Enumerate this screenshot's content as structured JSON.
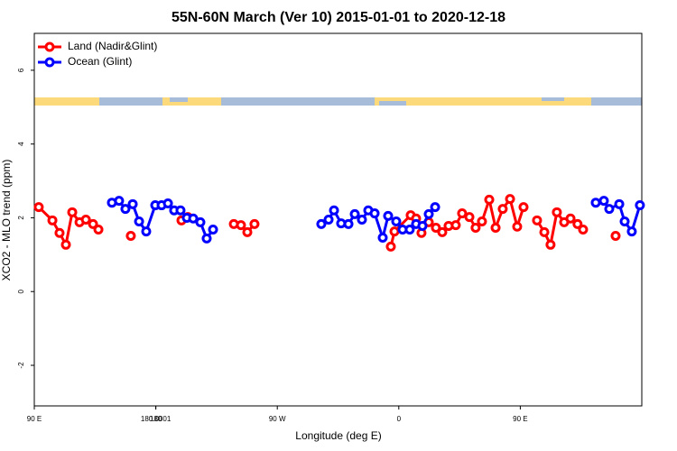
{
  "chart_data": {
    "type": "line",
    "title": "55N-60N March (Ver 10)   2015-01-01 to 2020-12-18",
    "xlabel": "Longitude (deg E)",
    "ylabel": "XCO2 - MLO trend (ppm)",
    "xlim": [
      90,
      540
    ],
    "ylim": [
      -3.1,
      7.0
    ],
    "xticks": [
      {
        "value": 90,
        "label": "90 E"
      },
      180,
      {
        "value": 270,
        "label": "90 W"
      },
      {
        "value": 360,
        "label": "0"
      },
      {
        "value": 450,
        "label": "90 E"
      },
      180.0001
    ],
    "yticks": [
      -2,
      0,
      2,
      4,
      6
    ],
    "legend": "top-left",
    "series": [
      {
        "name": "Land (Nadir&Glint)",
        "color": "#ff0000",
        "x": [
          93.3,
          103.4,
          108.7,
          113.4,
          118.1,
          123.5,
          128.2,
          133.5,
          137.5,
          150,
          161.5,
          180,
          199,
          203.7,
          220,
          237.8,
          243.1,
          247.8,
          253.1,
          300,
          354.1,
          356.8,
          368.8,
          372.8,
          376.8,
          382.2,
          387.5,
          392.2,
          396.9,
          402.2,
          406.9,
          412.3,
          416.9,
          421.6,
          427,
          431.7,
          437,
          442.4,
          447.7,
          452.4,
          457,
          462.4,
          467.8,
          472.4,
          477.1,
          482.5,
          487.2,
          492.4,
          496.5,
          510,
          520.6
        ],
        "values": [
          2.29,
          1.93,
          1.59,
          1.27,
          2.15,
          1.88,
          1.95,
          1.83,
          1.68,
          null,
          1.51,
          null,
          1.93,
          2.02,
          null,
          1.83,
          1.8,
          1.61,
          1.83,
          null,
          1.22,
          1.63,
          2.07,
          1.98,
          1.59,
          1.88,
          1.73,
          1.61,
          1.78,
          1.8,
          2.12,
          2.02,
          1.73,
          1.9,
          2.49,
          1.73,
          2.24,
          2.51,
          1.76,
          2.29,
          null,
          1.93,
          1.61,
          1.27,
          2.15,
          1.88,
          1.98,
          1.83,
          1.68,
          null,
          1.51
        ]
      },
      {
        "name": "Ocean (Glint)",
        "color": "#0000ff",
        "x": [
          147.5,
          152.8,
          157.5,
          162.9,
          167.6,
          172.9,
          179.6,
          184.3,
          189,
          193.6,
          198.3,
          203,
          207.7,
          213,
          217.7,
          222.4,
          260,
          302.6,
          308,
          312,
          317.3,
          322.7,
          327.4,
          332.7,
          337.4,
          342.1,
          348.1,
          352.1,
          358.1,
          362.8,
          368.1,
          372.8,
          377.5,
          382.2,
          386.9,
          450,
          505.9,
          511.9,
          515.9,
          523.3,
          527.3,
          532.6,
          538.6
        ],
        "values": [
          2.41,
          2.46,
          2.24,
          2.37,
          1.9,
          1.63,
          2.34,
          2.34,
          2.39,
          2.2,
          2.2,
          2,
          1.98,
          1.88,
          1.44,
          1.68,
          null,
          1.83,
          1.95,
          2.2,
          1.85,
          1.83,
          2.1,
          1.95,
          2.2,
          2.12,
          1.46,
          2.05,
          1.9,
          1.68,
          1.68,
          1.83,
          1.78,
          2.1,
          2.29,
          null,
          2.41,
          2.46,
          2.24,
          2.37,
          1.9,
          1.63,
          2.34
        ]
      }
    ]
  }
}
